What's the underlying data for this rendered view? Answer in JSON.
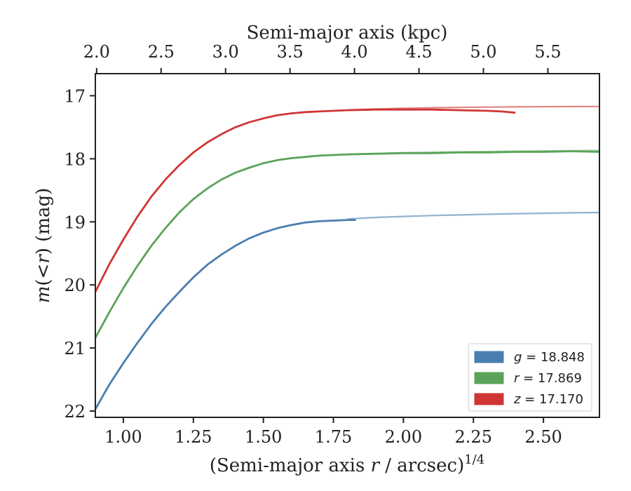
{
  "chart_data": {
    "type": "line",
    "xlabel_main": "(Semi-major axis ",
    "xlabel_italic": "r",
    "xlabel_rest": " / arcsec)",
    "xlabel_exponent": "1/4",
    "top_xlabel": "Semi-major axis (kpc)",
    "ylabel_italic_m": "m",
    "ylabel_paren_open": "(",
    "ylabel_lt": "<",
    "ylabel_italic_r": "r",
    "ylabel_paren_close": ")",
    "ylabel_unit": " (mag)",
    "xlim": [
      0.9,
      2.7
    ],
    "ylim": [
      22.1,
      16.65
    ],
    "y_inverted": true,
    "top_xlim": [
      1.99,
      5.9
    ],
    "xticks": [
      "1.00",
      "1.25",
      "1.50",
      "1.75",
      "2.00",
      "2.25",
      "2.50"
    ],
    "yticks": [
      "17",
      "18",
      "19",
      "20",
      "21",
      "22"
    ],
    "top_xticks": [
      "2.0",
      "2.5",
      "3.0",
      "3.5",
      "4.0",
      "4.5",
      "5.0",
      "5.5"
    ],
    "legend_position": "lower-right",
    "series": [
      {
        "band": "g",
        "value": "18.848",
        "color": "#4a7eb0",
        "x": [
          0.9,
          0.95,
          1.0,
          1.05,
          1.1,
          1.15,
          1.2,
          1.25,
          1.3,
          1.35,
          1.4,
          1.45,
          1.5,
          1.55,
          1.6,
          1.65,
          1.7,
          1.75,
          1.8,
          1.83
        ],
        "y": [
          21.97,
          21.58,
          21.24,
          20.92,
          20.62,
          20.35,
          20.11,
          19.88,
          19.68,
          19.52,
          19.38,
          19.26,
          19.17,
          19.1,
          19.05,
          19.01,
          18.99,
          18.98,
          18.97,
          18.97
        ],
        "model_x": [
          1.8,
          1.9,
          2.0,
          2.1,
          2.2,
          2.3,
          2.4,
          2.5,
          2.6,
          2.7
        ],
        "model_y": [
          18.955,
          18.93,
          18.915,
          18.9,
          18.89,
          18.88,
          18.87,
          18.865,
          18.857,
          18.852
        ]
      },
      {
        "band": "r",
        "value": "17.869",
        "color": "#5aa35a",
        "x": [
          0.9,
          0.95,
          1.0,
          1.05,
          1.1,
          1.15,
          1.2,
          1.25,
          1.3,
          1.35,
          1.4,
          1.45,
          1.5,
          1.55,
          1.6,
          1.65,
          1.7,
          1.75,
          1.8,
          1.9,
          2.0,
          2.1,
          2.2,
          2.3,
          2.4,
          2.5,
          2.6,
          2.7
        ],
        "y": [
          20.84,
          20.43,
          20.05,
          19.7,
          19.38,
          19.1,
          18.85,
          18.64,
          18.47,
          18.33,
          18.22,
          18.14,
          18.07,
          18.02,
          17.99,
          17.97,
          17.95,
          17.94,
          17.93,
          17.92,
          17.91,
          17.91,
          17.9,
          17.9,
          17.89,
          17.89,
          17.88,
          17.89
        ],
        "model_x": [
          1.8,
          2.0,
          2.2,
          2.4,
          2.6,
          2.7
        ],
        "model_y": [
          17.93,
          17.905,
          17.89,
          17.88,
          17.872,
          17.869
        ]
      },
      {
        "band": "z",
        "value": "17.170",
        "color": "#d03535",
        "x": [
          0.9,
          0.95,
          1.0,
          1.05,
          1.1,
          1.15,
          1.2,
          1.25,
          1.3,
          1.35,
          1.4,
          1.45,
          1.5,
          1.55,
          1.6,
          1.65,
          1.7,
          1.75,
          1.8,
          1.9,
          2.0,
          2.1,
          2.2,
          2.3,
          2.35,
          2.4
        ],
        "y": [
          20.11,
          19.67,
          19.28,
          18.92,
          18.6,
          18.33,
          18.1,
          17.9,
          17.74,
          17.61,
          17.5,
          17.42,
          17.36,
          17.31,
          17.28,
          17.26,
          17.25,
          17.24,
          17.23,
          17.22,
          17.22,
          17.22,
          17.23,
          17.24,
          17.25,
          17.27
        ],
        "model_x": [
          1.8,
          1.9,
          2.0,
          2.1,
          2.2,
          2.3,
          2.4,
          2.5,
          2.6,
          2.7
        ],
        "model_y": [
          17.225,
          17.21,
          17.2,
          17.19,
          17.185,
          17.18,
          17.177,
          17.174,
          17.172,
          17.17
        ]
      }
    ]
  }
}
